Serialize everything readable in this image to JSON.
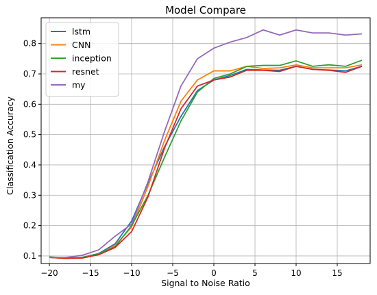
{
  "chart_data": {
    "type": "line",
    "title": "Model Compare",
    "xlabel": "Signal to Noise Ratio",
    "ylabel": "Classification Accuracy",
    "xlim": [
      -21,
      19
    ],
    "ylim": [
      0.075,
      0.885
    ],
    "xticks": [
      -20,
      -15,
      -10,
      -5,
      0,
      5,
      10,
      15
    ],
    "xtick_labels": [
      "−20",
      "−15",
      "−10",
      "−5",
      "0",
      "5",
      "10",
      "15"
    ],
    "yticks": [
      0.1,
      0.2,
      0.3,
      0.4,
      0.5,
      0.6,
      0.7,
      0.8
    ],
    "ytick_labels": [
      "0.1",
      "0.2",
      "0.3",
      "0.4",
      "0.5",
      "0.6",
      "0.7",
      "0.8"
    ],
    "grid": true,
    "legend_position": "top-left",
    "x": [
      -20,
      -18,
      -16,
      -14,
      -12,
      -10,
      -8,
      -6,
      -4,
      -2,
      0,
      2,
      4,
      6,
      8,
      10,
      12,
      14,
      16,
      18
    ],
    "series": [
      {
        "name": "lstm",
        "color": "#1f77b4",
        "values": [
          0.095,
          0.092,
          0.095,
          0.108,
          0.14,
          0.215,
          0.34,
          0.46,
          0.56,
          0.645,
          0.68,
          0.695,
          0.715,
          0.713,
          0.712,
          0.725,
          0.715,
          0.713,
          0.71,
          0.725
        ]
      },
      {
        "name": "CNN",
        "color": "#ff7f0e",
        "values": [
          0.095,
          0.092,
          0.095,
          0.105,
          0.135,
          0.195,
          0.33,
          0.48,
          0.61,
          0.68,
          0.71,
          0.71,
          0.725,
          0.718,
          0.72,
          0.73,
          0.72,
          0.72,
          0.72,
          0.73
        ]
      },
      {
        "name": "inception",
        "color": "#2ca02c",
        "values": [
          0.097,
          0.093,
          0.095,
          0.107,
          0.13,
          0.2,
          0.3,
          0.425,
          0.545,
          0.64,
          0.685,
          0.7,
          0.725,
          0.728,
          0.728,
          0.743,
          0.725,
          0.73,
          0.725,
          0.745
        ]
      },
      {
        "name": "resnet",
        "color": "#d62728",
        "values": [
          0.095,
          0.092,
          0.093,
          0.104,
          0.128,
          0.18,
          0.295,
          0.455,
          0.585,
          0.66,
          0.68,
          0.69,
          0.712,
          0.712,
          0.708,
          0.725,
          0.715,
          0.712,
          0.705,
          0.725
        ]
      },
      {
        "name": "my",
        "color": "#9467bd",
        "values": [
          0.095,
          0.095,
          0.102,
          0.12,
          0.165,
          0.205,
          0.345,
          0.51,
          0.66,
          0.75,
          0.785,
          0.805,
          0.82,
          0.845,
          0.828,
          0.845,
          0.835,
          0.835,
          0.828,
          0.832
        ]
      }
    ]
  }
}
